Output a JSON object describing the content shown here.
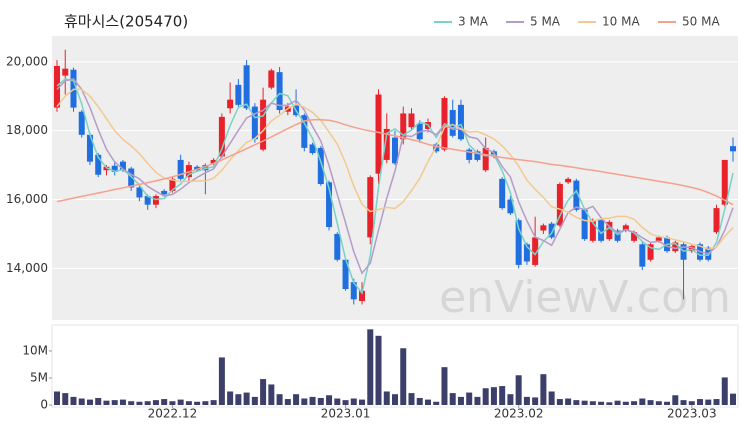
{
  "chart_data": {
    "type": "candlestick",
    "title": "휴마시스(205470)",
    "watermark": "enViewV.com",
    "legend": "top-right",
    "grid": true,
    "up_color": "#e8212b",
    "down_color": "#1f6fe0",
    "categories": [
      null,
      null,
      null,
      null,
      null,
      null,
      null,
      null,
      null,
      null,
      null,
      null,
      null,
      null,
      "2022.12",
      null,
      null,
      null,
      null,
      null,
      null,
      null,
      null,
      null,
      null,
      null,
      null,
      null,
      null,
      null,
      null,
      null,
      null,
      null,
      null,
      "2023.01",
      null,
      null,
      null,
      null,
      null,
      null,
      null,
      null,
      null,
      null,
      null,
      null,
      null,
      null,
      null,
      null,
      null,
      null,
      null,
      null,
      "2023.02",
      null,
      null,
      null,
      null,
      null,
      null,
      null,
      null,
      null,
      null,
      null,
      null,
      null,
      null,
      null,
      null,
      null,
      null,
      null,
      null,
      "2023.03",
      null,
      null,
      null,
      null,
      null
    ],
    "open": [
      18670,
      19600,
      19770,
      18550,
      17880,
      17300,
      16850,
      16980,
      17100,
      16900,
      16350,
      16100,
      15850,
      16250,
      16250,
      17150,
      16650,
      16950,
      17000,
      17050,
      17250,
      18650,
      19330,
      19900,
      18700,
      17450,
      19250,
      19700,
      18550,
      18750,
      18450,
      17600,
      17500,
      16500,
      15000,
      14250,
      13600,
      13050,
      14900,
      16750,
      17150,
      17800,
      17750,
      18100,
      18200,
      18050,
      17600,
      17450,
      18600,
      18750,
      17450,
      17400,
      16850,
      17400,
      16600,
      16000,
      15400,
      14700,
      14100,
      15100,
      15300,
      15250,
      16500,
      16550,
      15700,
      14800,
      15400,
      14850,
      15100,
      15100,
      14800,
      14700,
      14250,
      14800,
      14900,
      14500,
      14700,
      14500,
      14700,
      14600,
      15050,
      15850,
      17550
    ],
    "high": [
      20050,
      20350,
      19830,
      18600,
      17950,
      17350,
      17000,
      17100,
      17150,
      16950,
      16400,
      16150,
      16150,
      16300,
      16650,
      17300,
      17100,
      17000,
      17050,
      17200,
      18500,
      19400,
      19500,
      20050,
      18800,
      19250,
      19800,
      19850,
      18800,
      19200,
      18500,
      17650,
      17550,
      16550,
      15050,
      14300,
      13700,
      13600,
      16700,
      19200,
      18500,
      18000,
      18700,
      18650,
      18300,
      18350,
      17650,
      19000,
      18900,
      18900,
      17500,
      17450,
      17800,
      17450,
      16650,
      16100,
      15450,
      14750,
      15500,
      15300,
      15350,
      16500,
      16650,
      16600,
      15750,
      15450,
      15450,
      15400,
      15150,
      15300,
      15100,
      14750,
      14750,
      14950,
      14950,
      14800,
      14750,
      14700,
      14750,
      14650,
      15850,
      17150,
      17800
    ],
    "low": [
      18550,
      19050,
      18550,
      17800,
      17000,
      16650,
      16700,
      16700,
      16800,
      16250,
      15950,
      15700,
      15750,
      16100,
      16200,
      16550,
      16550,
      16800,
      16150,
      17000,
      17200,
      18500,
      18700,
      18600,
      17650,
      17400,
      19200,
      18500,
      18450,
      18400,
      17400,
      17300,
      16400,
      15100,
      14200,
      13350,
      12950,
      12950,
      14700,
      16450,
      17050,
      17000,
      17600,
      18000,
      17650,
      17950,
      17350,
      17400,
      17800,
      17700,
      17050,
      17100,
      16800,
      17200,
      15700,
      15550,
      14000,
      14100,
      14050,
      15000,
      14850,
      15200,
      16450,
      15650,
      14800,
      14750,
      14750,
      14800,
      14750,
      15050,
      14750,
      13950,
      14200,
      14750,
      14450,
      14450,
      13100,
      14450,
      14200,
      14200,
      15000,
      15800,
      17100
    ],
    "close": [
      19880,
      19800,
      18670,
      17880,
      17100,
      16720,
      16950,
      16800,
      16850,
      16350,
      16060,
      15850,
      16100,
      16150,
      16600,
      16600,
      17000,
      16850,
      16850,
      17150,
      18400,
      18900,
      18750,
      18650,
      17750,
      18900,
      19750,
      18600,
      18700,
      18450,
      17500,
      17350,
      16450,
      15200,
      14250,
      13400,
      13100,
      13350,
      16650,
      19050,
      18050,
      17050,
      18500,
      18500,
      17750,
      18250,
      17400,
      18950,
      17850,
      17750,
      17150,
      17150,
      17500,
      17250,
      15750,
      15600,
      14100,
      14200,
      14900,
      15250,
      14900,
      16450,
      16600,
      15700,
      14850,
      15400,
      14800,
      15350,
      14800,
      15250,
      15050,
      14050,
      14700,
      14900,
      14500,
      14750,
      14250,
      14650,
      14250,
      14250,
      15750,
      17150,
      17400
    ],
    "ylim": [
      12500,
      20750
    ],
    "yticks": [
      {
        "value": 14000,
        "label": "14,000"
      },
      {
        "value": 16000,
        "label": "16,000"
      },
      {
        "value": 18000,
        "label": "18,000"
      },
      {
        "value": 20000,
        "label": "20,000"
      }
    ],
    "series": [
      {
        "name": "3 MA",
        "color": "#79d2c6",
        "values": [
          19300,
          19500,
          19450,
          18780,
          17880,
          17230,
          16920,
          16820,
          16870,
          16670,
          16420,
          16090,
          16000,
          16030,
          16280,
          16450,
          16730,
          16820,
          16900,
          16950,
          17470,
          18150,
          18680,
          18770,
          18380,
          18430,
          18800,
          19080,
          19020,
          18580,
          18220,
          17770,
          17100,
          16330,
          15300,
          14280,
          13580,
          13280,
          14370,
          16350,
          17920,
          18050,
          17870,
          18020,
          18250,
          18170,
          17800,
          18200,
          18070,
          18180,
          17580,
          17350,
          17270,
          17300,
          16830,
          16200,
          15150,
          14630,
          14400,
          14780,
          15020,
          15530,
          15980,
          16250,
          15720,
          15320,
          15020,
          15180,
          14980,
          15130,
          15030,
          14780,
          14600,
          14550,
          14700,
          14720,
          14500,
          14550,
          14380,
          14380,
          14750,
          15720,
          16770
        ]
      },
      {
        "name": "5 MA",
        "color": "#b49cc8",
        "values": [
          19200,
          19450,
          19500,
          19200,
          18670,
          18030,
          17460,
          17090,
          16880,
          16730,
          16600,
          16380,
          16240,
          16100,
          16150,
          16300,
          16490,
          16640,
          16780,
          16890,
          17250,
          17630,
          18010,
          18370,
          18490,
          18590,
          18800,
          18730,
          18740,
          18880,
          18600,
          18120,
          17700,
          16990,
          16150,
          15330,
          14480,
          13860,
          14150,
          15110,
          16040,
          16830,
          17860,
          17830,
          17970,
          18010,
          17880,
          18170,
          18040,
          18040,
          17820,
          17770,
          17480,
          17360,
          16960,
          16650,
          15930,
          15380,
          14910,
          14810,
          14670,
          15140,
          15620,
          15780,
          15700,
          15800,
          15470,
          15220,
          15040,
          15120,
          15050,
          14890,
          14750,
          14790,
          14640,
          14580,
          14620,
          14610,
          14480,
          14430,
          14630,
          15110,
          15760
        ]
      },
      {
        "name": "10 MA",
        "color": "#f2c98e",
        "values": [
          18700,
          19000,
          19200,
          19200,
          19000,
          18700,
          18350,
          18000,
          17740,
          17560,
          17330,
          17050,
          16790,
          16620,
          16570,
          16520,
          16530,
          16540,
          16540,
          16620,
          16850,
          17150,
          17420,
          17660,
          17770,
          18000,
          18280,
          18450,
          18640,
          18770,
          18680,
          18530,
          18300,
          17960,
          17610,
          17060,
          16390,
          15860,
          15650,
          15710,
          15770,
          15740,
          15930,
          16260,
          16610,
          17100,
          17540,
          18100,
          18180,
          18050,
          17960,
          17980,
          17880,
          17760,
          17560,
          17300,
          16970,
          16560,
          16300,
          16060,
          15790,
          15720,
          15630,
          15480,
          15390,
          15370,
          15440,
          15460,
          15510,
          15510,
          15430,
          15190,
          15000,
          14920,
          14890,
          14830,
          14770,
          14700,
          14650,
          14550,
          14620,
          14930,
          15180
        ]
      },
      {
        "name": "50 MA",
        "color": "#f5a08c",
        "values": [
          15940,
          15990,
          16040,
          16090,
          16140,
          16190,
          16240,
          16290,
          16340,
          16390,
          16440,
          16490,
          16540,
          16600,
          16660,
          16730,
          16800,
          16880,
          16960,
          17050,
          17150,
          17260,
          17370,
          17480,
          17590,
          17700,
          17820,
          17940,
          18060,
          18180,
          18280,
          18320,
          18320,
          18300,
          18250,
          18170,
          18100,
          18040,
          17990,
          17950,
          17900,
          17850,
          17800,
          17740,
          17680,
          17600,
          17540,
          17500,
          17460,
          17420,
          17380,
          17340,
          17300,
          17260,
          17220,
          17190,
          17160,
          17130,
          17100,
          17060,
          17020,
          16990,
          16960,
          16920,
          16880,
          16850,
          16810,
          16770,
          16730,
          16690,
          16650,
          16610,
          16570,
          16530,
          16490,
          16450,
          16400,
          16350,
          16290,
          16200,
          16100,
          15980,
          15850
        ]
      }
    ],
    "volume": {
      "color": "#3d3f6b",
      "ylim": [
        0,
        14800000
      ],
      "yticks": [
        0,
        {
          "value": 5000000,
          "label": "5M"
        },
        {
          "value": 10000000,
          "label": "10M"
        }
      ],
      "values": [
        2500000,
        2200000,
        1500000,
        1200000,
        1000000,
        1300000,
        800000,
        900000,
        1000000,
        700000,
        600000,
        700000,
        900000,
        1100000,
        700000,
        1000000,
        700000,
        600000,
        700000,
        900000,
        8800000,
        2500000,
        2000000,
        2300000,
        1500000,
        4800000,
        3800000,
        2000000,
        1100000,
        2000000,
        1200000,
        1500000,
        1300000,
        1800000,
        1200000,
        900000,
        1200000,
        1000000,
        14000000,
        12800000,
        2500000,
        2000000,
        10500000,
        2200000,
        1300000,
        1000000,
        600000,
        7000000,
        2200000,
        1500000,
        2300000,
        1500000,
        3100000,
        3300000,
        3500000,
        2000000,
        5500000,
        1500000,
        1400000,
        5700000,
        2500000,
        1100000,
        1200000,
        900000,
        800000,
        700000,
        600000,
        500000,
        800000,
        600000,
        700000,
        1200000,
        900000,
        700000,
        600000,
        1800000,
        900000,
        700000,
        1100000,
        1000000,
        1100000,
        5100000,
        2100000
      ]
    }
  }
}
